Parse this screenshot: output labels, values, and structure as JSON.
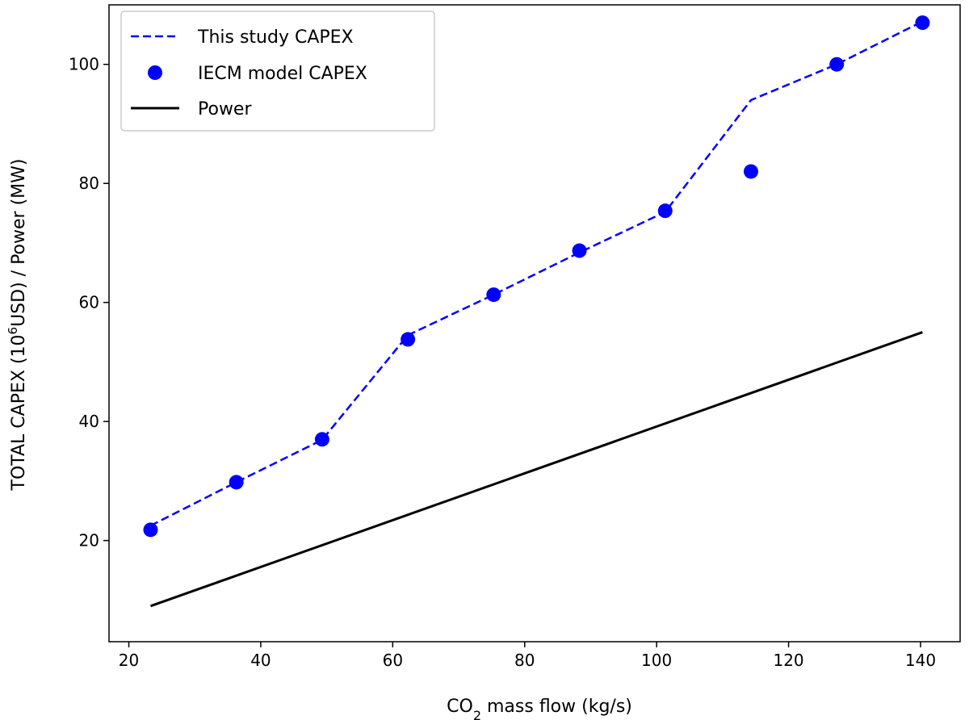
{
  "chart_data": {
    "type": "line",
    "title": "",
    "xlabel": {
      "pre": "CO",
      "sub": "2",
      "post": " mass flow (kg/s)"
    },
    "ylabel": {
      "pre": "TOTAL CAPEX (10",
      "sup": "6",
      "post": "USD) / Power (MW)"
    },
    "xlim": [
      17,
      146
    ],
    "ylim": [
      3,
      110
    ],
    "x_ticks": [
      20,
      40,
      60,
      80,
      100,
      120,
      140
    ],
    "y_ticks": [
      20,
      40,
      60,
      80,
      100
    ],
    "grid": false,
    "legend_position": "top-left",
    "series": [
      {
        "name": "This study CAPEX",
        "style": "dashed-line",
        "color": "#0000ff",
        "x": [
          23.3,
          36.3,
          49.3,
          62.3,
          75.3,
          88.3,
          101.3,
          114.3,
          127.3,
          140.3
        ],
        "y": [
          22.5,
          29.8,
          36.9,
          54.5,
          61.3,
          68.4,
          75.2,
          94.0,
          100.0,
          107.2
        ]
      },
      {
        "name": "IECM model CAPEX",
        "style": "markers",
        "color": "#0000ff",
        "x": [
          23.3,
          36.3,
          49.3,
          62.3,
          75.3,
          88.3,
          101.3,
          114.3,
          127.3,
          140.3
        ],
        "y": [
          21.8,
          29.8,
          37.0,
          53.8,
          61.3,
          68.7,
          75.4,
          82.0,
          100.0,
          107.0
        ]
      },
      {
        "name": "Power",
        "style": "solid-line",
        "color": "#000000",
        "x": [
          23.3,
          140.3
        ],
        "y": [
          9.0,
          55.0
        ]
      }
    ]
  }
}
